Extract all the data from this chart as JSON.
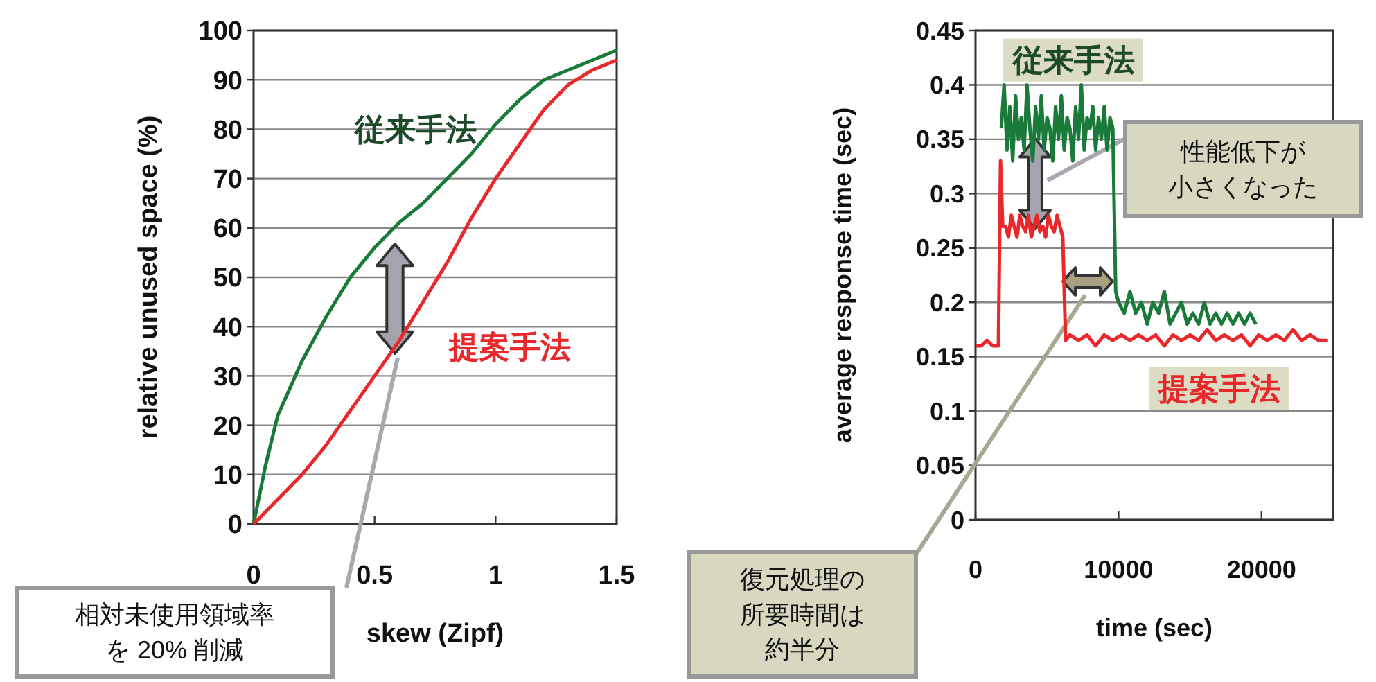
{
  "chart_data": [
    {
      "type": "line",
      "xlabel": "skew (Zipf)",
      "ylabel": "relative unused space (%)",
      "x": [
        0,
        0.05,
        0.1,
        0.2,
        0.3,
        0.4,
        0.5,
        0.6,
        0.7,
        0.8,
        0.9,
        1.0,
        1.1,
        1.2,
        1.3,
        1.4,
        1.5
      ],
      "series": [
        {
          "name": "従来手法",
          "color": "#1a7a3a",
          "values": [
            0,
            12,
            22,
            33,
            42,
            50,
            56,
            61,
            65,
            70,
            75,
            81,
            86,
            90,
            92,
            94,
            96
          ]
        },
        {
          "name": "提案手法",
          "color": "#e8282a",
          "values": [
            0,
            2.5,
            5,
            10,
            16,
            23,
            30,
            37,
            45,
            53,
            62,
            70,
            77,
            84,
            89,
            92,
            94
          ]
        }
      ],
      "xlim": [
        0,
        1.5
      ],
      "xticks": [
        0,
        0.5,
        1,
        1.5
      ],
      "ylim": [
        0,
        100
      ],
      "yticks": [
        0,
        10,
        20,
        30,
        40,
        50,
        60,
        70,
        80,
        90,
        100
      ],
      "grid": "y",
      "marker": "none",
      "annotations": [
        "相対未使用領域率を 20% 削減"
      ]
    },
    {
      "type": "line",
      "xlabel": "time (sec)",
      "ylabel": "average response time (sec)",
      "series": [
        {
          "name": "従来手法",
          "color": "#1a7a3a",
          "x": [
            1800,
            2000,
            2200,
            2400,
            2600,
            2800,
            3000,
            3200,
            3400,
            3600,
            3800,
            4000,
            4200,
            4400,
            4600,
            4800,
            5000,
            5200,
            5400,
            5600,
            5800,
            6000,
            6200,
            6400,
            6600,
            6800,
            7000,
            7200,
            7400,
            7600,
            7800,
            8000,
            8200,
            8400,
            8600,
            8800,
            9000,
            9200,
            9400,
            9600,
            9800,
            10000,
            10400,
            10800,
            11200,
            11600,
            12000,
            12400,
            12800,
            13200,
            13600,
            14000,
            14400,
            14800,
            15200,
            15600,
            16000,
            16400,
            16800,
            17200,
            17600,
            18000,
            18400,
            18800,
            19200,
            19600
          ],
          "values": [
            0.36,
            0.4,
            0.34,
            0.38,
            0.33,
            0.39,
            0.35,
            0.37,
            0.34,
            0.4,
            0.36,
            0.33,
            0.38,
            0.35,
            0.39,
            0.34,
            0.37,
            0.36,
            0.33,
            0.38,
            0.35,
            0.39,
            0.34,
            0.37,
            0.36,
            0.33,
            0.38,
            0.35,
            0.4,
            0.34,
            0.37,
            0.36,
            0.38,
            0.34,
            0.37,
            0.35,
            0.38,
            0.34,
            0.37,
            0.36,
            0.21,
            0.2,
            0.19,
            0.21,
            0.19,
            0.2,
            0.18,
            0.2,
            0.19,
            0.21,
            0.18,
            0.19,
            0.2,
            0.18,
            0.19,
            0.18,
            0.2,
            0.18,
            0.19,
            0.18,
            0.19,
            0.18,
            0.19,
            0.18,
            0.19,
            0.18
          ]
        },
        {
          "name": "提案手法",
          "color": "#e8282a",
          "x": [
            0,
            400,
            800,
            1200,
            1600,
            1750,
            1900,
            2100,
            2300,
            2500,
            2700,
            2900,
            3100,
            3300,
            3500,
            3700,
            3900,
            4100,
            4300,
            4500,
            4700,
            4900,
            5100,
            5300,
            5500,
            5700,
            5900,
            6100,
            6300,
            6600,
            7200,
            7800,
            8400,
            9000,
            9600,
            10200,
            10800,
            11400,
            12000,
            12600,
            13200,
            13800,
            14400,
            15000,
            15600,
            16200,
            16800,
            17400,
            18000,
            18600,
            19200,
            19800,
            20400,
            21000,
            21600,
            22200,
            22800,
            23400,
            24000,
            24600
          ],
          "values": [
            0.16,
            0.16,
            0.165,
            0.16,
            0.16,
            0.33,
            0.27,
            0.27,
            0.26,
            0.28,
            0.27,
            0.26,
            0.28,
            0.27,
            0.265,
            0.28,
            0.26,
            0.27,
            0.28,
            0.265,
            0.27,
            0.26,
            0.28,
            0.27,
            0.265,
            0.28,
            0.27,
            0.26,
            0.165,
            0.17,
            0.165,
            0.17,
            0.16,
            0.17,
            0.165,
            0.17,
            0.165,
            0.17,
            0.165,
            0.17,
            0.16,
            0.17,
            0.165,
            0.17,
            0.165,
            0.175,
            0.165,
            0.17,
            0.165,
            0.17,
            0.16,
            0.17,
            0.165,
            0.17,
            0.165,
            0.175,
            0.165,
            0.17,
            0.165,
            0.165
          ]
        }
      ],
      "xlim": [
        0,
        25000
      ],
      "xticks": [
        0,
        10000,
        20000
      ],
      "ylim": [
        0,
        0.45
      ],
      "yticks": [
        0,
        0.05,
        0.1,
        0.15,
        0.2,
        0.25,
        0.3,
        0.35,
        0.4,
        0.45
      ],
      "grid": "y",
      "marker": "none",
      "annotations": [
        "性能低下が小さくなった",
        "復元処理の所要時間は約半分"
      ]
    }
  ]
}
